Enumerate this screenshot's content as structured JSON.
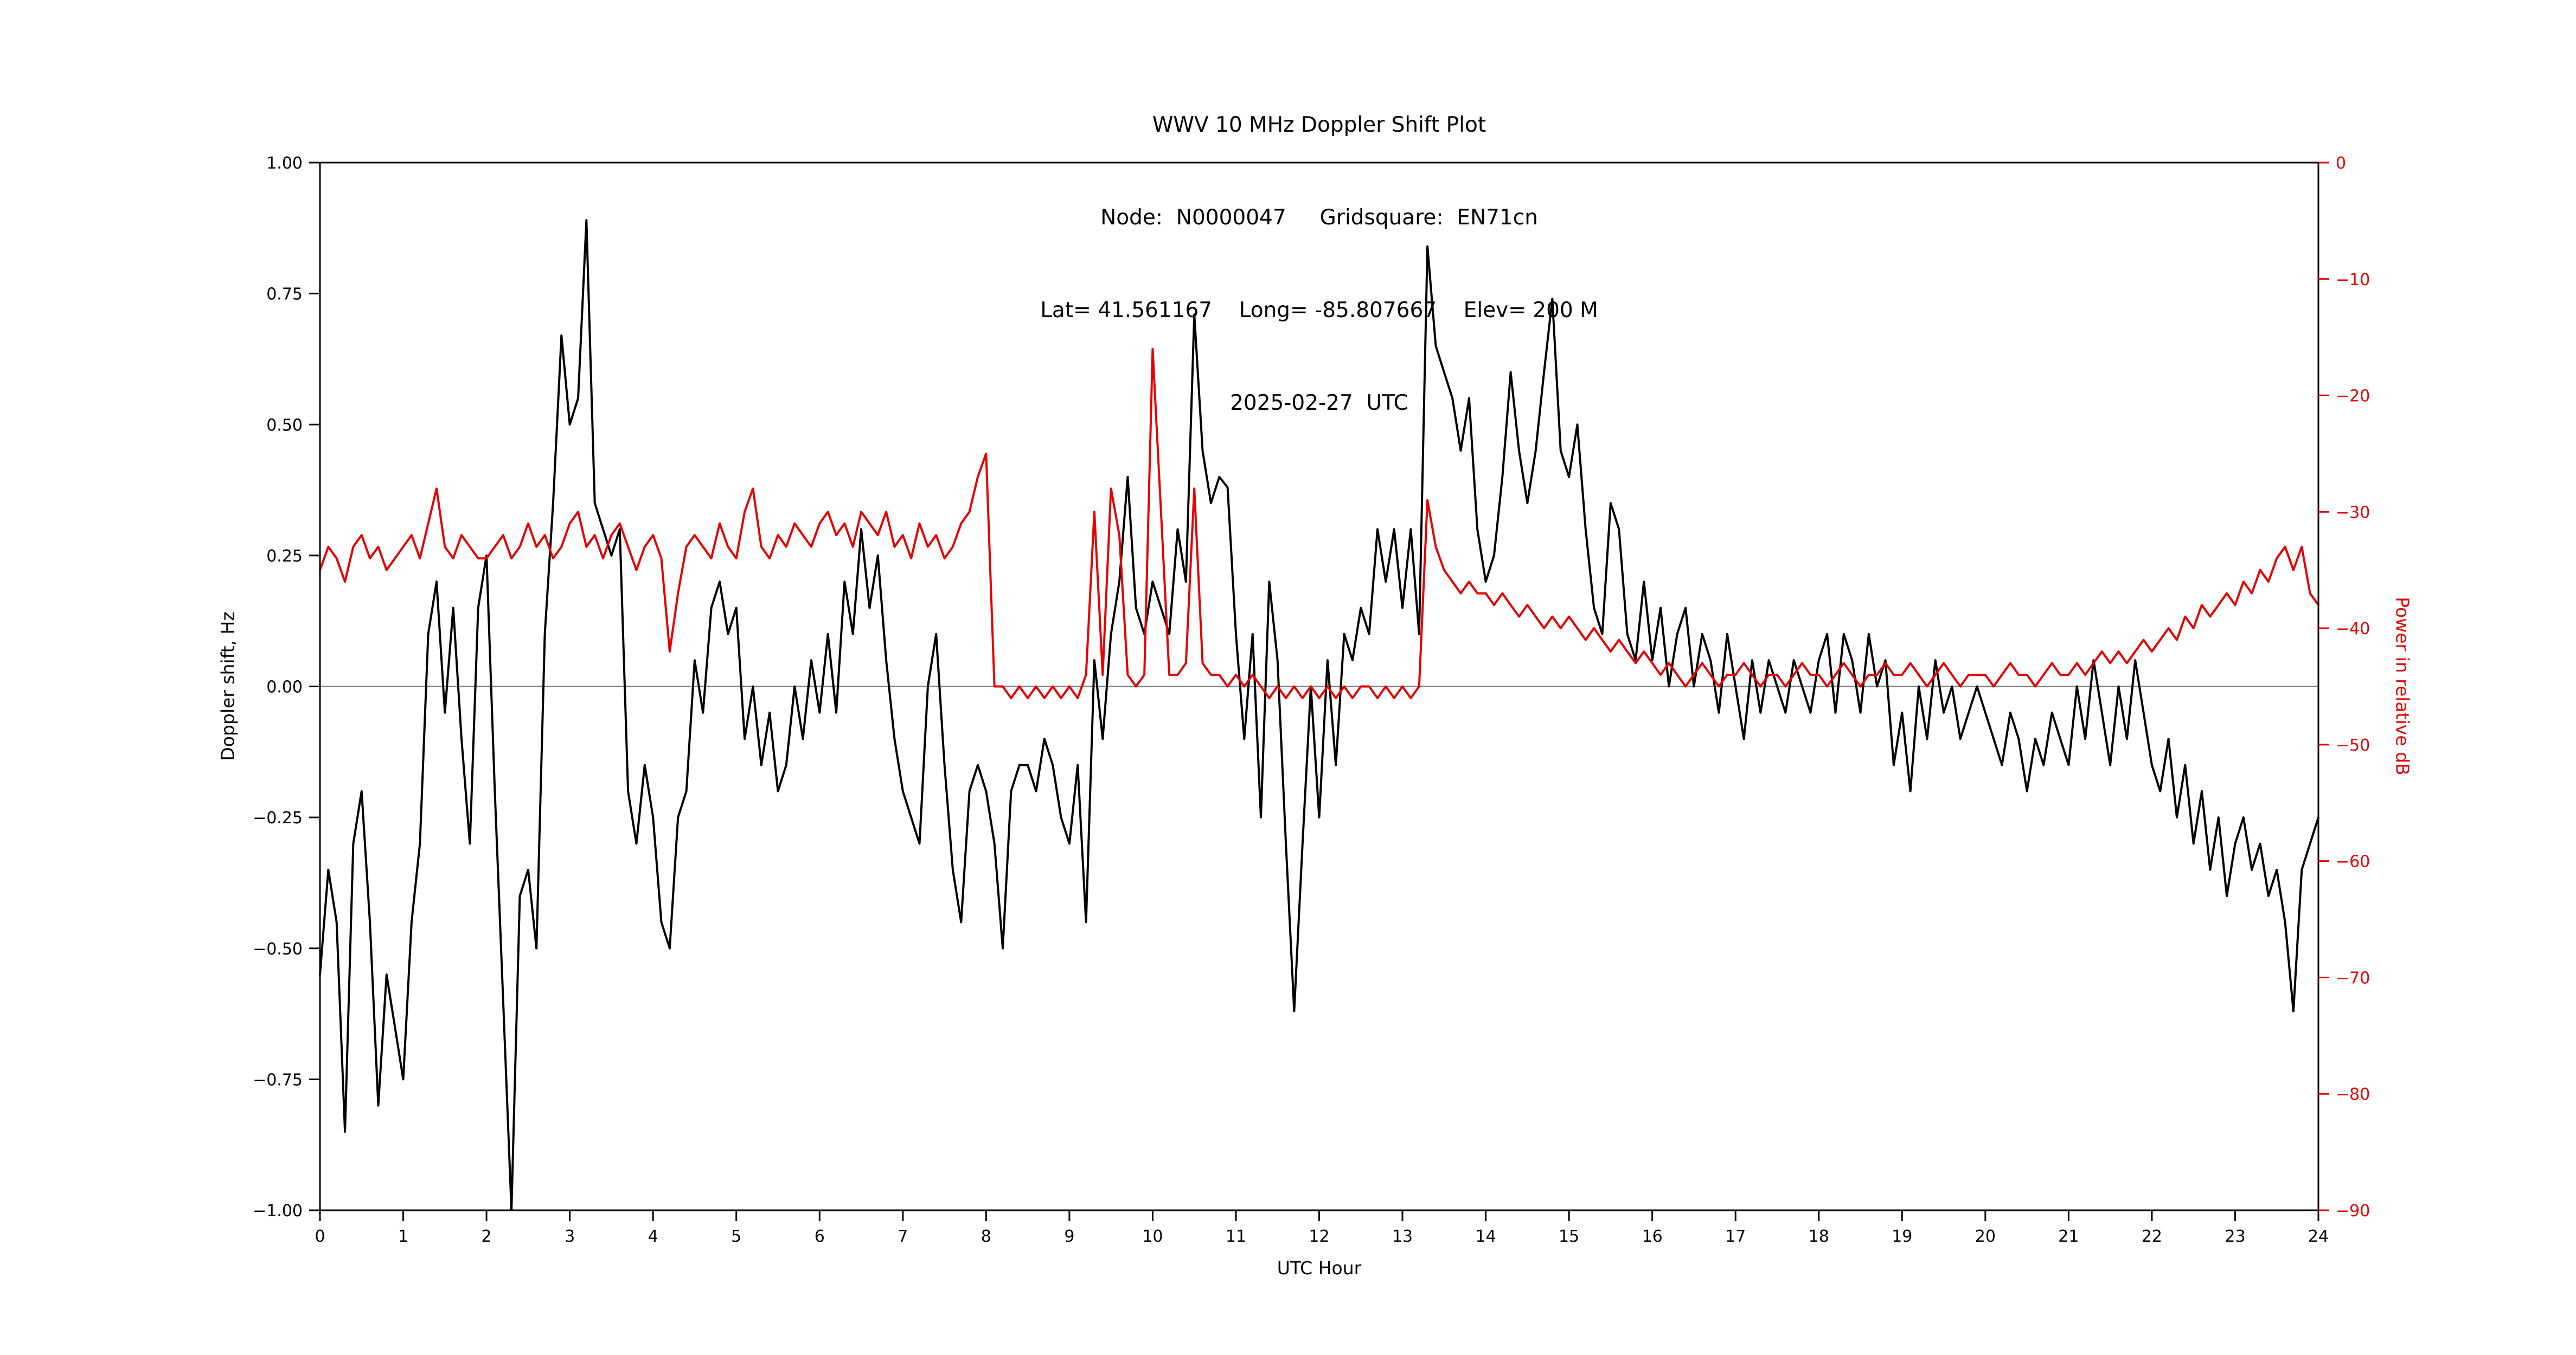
{
  "chart_data": {
    "type": "line",
    "title": "WWV 10 MHz Doppler Shift Plot",
    "title_lines": [
      "WWV 10 MHz Doppler Shift Plot",
      "Node:  N0000047     Gridsquare:  EN71cn",
      "Lat= 41.561167    Long= -85.807667    Elev= 200 M",
      "2025-02-27  UTC"
    ],
    "xlabel": "UTC Hour",
    "ylabel_left": "Doppler shift, Hz",
    "ylabel_right": "Power in relative dB",
    "x_range": [
      0,
      24
    ],
    "y_left_range": [
      -1.0,
      1.0
    ],
    "y_right_range": [
      -90,
      0
    ],
    "x_ticks": [
      0,
      1,
      2,
      3,
      4,
      5,
      6,
      7,
      8,
      9,
      10,
      11,
      12,
      13,
      14,
      15,
      16,
      17,
      18,
      19,
      20,
      21,
      22,
      23,
      24
    ],
    "x_tick_labels": [
      "0",
      "1",
      "2",
      "3",
      "4",
      "5",
      "6",
      "7",
      "8",
      "9",
      "10",
      "11",
      "12",
      "13",
      "14",
      "15",
      "16",
      "17",
      "18",
      "19",
      "20",
      "21",
      "22",
      "23",
      "24"
    ],
    "y_left_ticks": [
      -1.0,
      -0.75,
      -0.5,
      -0.25,
      0.0,
      0.25,
      0.5,
      0.75,
      1.0
    ],
    "y_left_tick_labels": [
      "−1.00",
      "−0.75",
      "−0.50",
      "−0.25",
      "0.00",
      "0.25",
      "0.50",
      "0.75",
      "1.00"
    ],
    "y_right_ticks": [
      0,
      -10,
      -20,
      -30,
      -40,
      -50,
      -60,
      -70,
      -80,
      -90
    ],
    "y_right_tick_labels": [
      "0",
      "−10",
      "−20",
      "−30",
      "−40",
      "−50",
      "−60",
      "−70",
      "−80",
      "−90"
    ],
    "grid": false,
    "legend": "none",
    "zero_line_value": 0.0,
    "colors": {
      "doppler": "#000000",
      "power": "#e60000",
      "zero_line": "#808080",
      "spine": "#000000"
    },
    "x_step": 0.1,
    "series": [
      {
        "name": "Doppler shift",
        "axis": "left",
        "color": "#000000",
        "values": [
          -0.55,
          -0.35,
          -0.45,
          -0.85,
          -0.3,
          -0.2,
          -0.45,
          -0.8,
          -0.55,
          -0.65,
          -0.75,
          -0.45,
          -0.3,
          0.1,
          0.2,
          -0.05,
          0.15,
          -0.1,
          -0.3,
          0.15,
          0.25,
          -0.2,
          -0.6,
          -1.0,
          -0.4,
          -0.35,
          -0.5,
          0.1,
          0.35,
          0.67,
          0.5,
          0.55,
          0.89,
          0.35,
          0.3,
          0.25,
          0.3,
          -0.2,
          -0.3,
          -0.15,
          -0.25,
          -0.45,
          -0.5,
          -0.25,
          -0.2,
          0.05,
          -0.05,
          0.15,
          0.2,
          0.1,
          0.15,
          -0.1,
          0.0,
          -0.15,
          -0.05,
          -0.2,
          -0.15,
          0.0,
          -0.1,
          0.05,
          -0.05,
          0.1,
          -0.05,
          0.2,
          0.1,
          0.3,
          0.15,
          0.25,
          0.05,
          -0.1,
          -0.2,
          -0.25,
          -0.3,
          0.0,
          0.1,
          -0.15,
          -0.35,
          -0.45,
          -0.2,
          -0.15,
          -0.2,
          -0.3,
          -0.5,
          -0.2,
          -0.15,
          -0.15,
          -0.2,
          -0.1,
          -0.15,
          -0.25,
          -0.3,
          -0.15,
          -0.45,
          0.05,
          -0.1,
          0.1,
          0.2,
          0.4,
          0.15,
          0.1,
          0.2,
          0.15,
          0.1,
          0.3,
          0.2,
          0.71,
          0.45,
          0.35,
          0.4,
          0.38,
          0.1,
          -0.1,
          0.1,
          -0.25,
          0.2,
          0.05,
          -0.3,
          -0.62,
          -0.3,
          0.0,
          -0.25,
          0.05,
          -0.15,
          0.1,
          0.05,
          0.15,
          0.1,
          0.3,
          0.2,
          0.3,
          0.15,
          0.3,
          0.1,
          0.84,
          0.65,
          0.6,
          0.55,
          0.45,
          0.55,
          0.3,
          0.2,
          0.25,
          0.4,
          0.6,
          0.45,
          0.35,
          0.45,
          0.6,
          0.74,
          0.45,
          0.4,
          0.5,
          0.3,
          0.15,
          0.1,
          0.35,
          0.3,
          0.1,
          0.05,
          0.2,
          0.05,
          0.15,
          0.0,
          0.1,
          0.15,
          0.0,
          0.1,
          0.05,
          -0.05,
          0.1,
          0.0,
          -0.1,
          0.05,
          -0.05,
          0.05,
          0.0,
          -0.05,
          0.05,
          0.0,
          -0.05,
          0.05,
          0.1,
          -0.05,
          0.1,
          0.05,
          -0.05,
          0.1,
          0.0,
          0.05,
          -0.15,
          -0.05,
          -0.2,
          0.0,
          -0.1,
          0.05,
          -0.05,
          0.0,
          -0.1,
          -0.05,
          0.0,
          -0.05,
          -0.1,
          -0.15,
          -0.05,
          -0.1,
          -0.2,
          -0.1,
          -0.15,
          -0.05,
          -0.1,
          -0.15,
          0.0,
          -0.1,
          0.05,
          -0.05,
          -0.15,
          0.0,
          -0.1,
          0.05,
          -0.05,
          -0.15,
          -0.2,
          -0.1,
          -0.25,
          -0.15,
          -0.3,
          -0.2,
          -0.35,
          -0.25,
          -0.4,
          -0.3,
          -0.25,
          -0.35,
          -0.3,
          -0.4,
          -0.35,
          -0.45,
          -0.62,
          -0.35,
          -0.3,
          -0.25
        ]
      },
      {
        "name": "Power in relative dB",
        "axis": "right",
        "color": "#e60000",
        "values": [
          -35,
          -33,
          -34,
          -36,
          -33,
          -32,
          -34,
          -33,
          -35,
          -34,
          -33,
          -32,
          -34,
          -31,
          -28,
          -33,
          -34,
          -32,
          -33,
          -34,
          -34,
          -33,
          -32,
          -34,
          -33,
          -31,
          -33,
          -32,
          -34,
          -33,
          -31,
          -30,
          -33,
          -32,
          -34,
          -32,
          -31,
          -33,
          -35,
          -33,
          -32,
          -34,
          -42,
          -37,
          -33,
          -32,
          -33,
          -34,
          -31,
          -33,
          -34,
          -30,
          -28,
          -33,
          -34,
          -32,
          -33,
          -31,
          -32,
          -33,
          -31,
          -30,
          -32,
          -31,
          -33,
          -30,
          -31,
          -32,
          -30,
          -33,
          -32,
          -34,
          -31,
          -33,
          -32,
          -34,
          -33,
          -31,
          -30,
          -27,
          -25,
          -45,
          -45,
          -46,
          -45,
          -46,
          -45,
          -46,
          -45,
          -46,
          -45,
          -46,
          -44,
          -30,
          -44,
          -28,
          -32,
          -44,
          -45,
          -44,
          -16,
          -30,
          -44,
          -44,
          -43,
          -28,
          -43,
          -44,
          -44,
          -45,
          -44,
          -45,
          -44,
          -45,
          -46,
          -45,
          -46,
          -45,
          -46,
          -45,
          -46,
          -45,
          -46,
          -45,
          -46,
          -45,
          -45,
          -46,
          -45,
          -46,
          -45,
          -46,
          -45,
          -29,
          -33,
          -35,
          -36,
          -37,
          -36,
          -37,
          -37,
          -38,
          -37,
          -38,
          -39,
          -38,
          -39,
          -40,
          -39,
          -40,
          -39,
          -40,
          -41,
          -40,
          -41,
          -42,
          -41,
          -42,
          -43,
          -42,
          -43,
          -44,
          -43,
          -44,
          -45,
          -44,
          -43,
          -44,
          -45,
          -44,
          -44,
          -43,
          -44,
          -45,
          -44,
          -44,
          -45,
          -44,
          -43,
          -44,
          -44,
          -45,
          -44,
          -43,
          -44,
          -45,
          -44,
          -44,
          -43,
          -44,
          -44,
          -43,
          -44,
          -45,
          -44,
          -43,
          -44,
          -45,
          -44,
          -44,
          -44,
          -45,
          -44,
          -43,
          -44,
          -44,
          -45,
          -44,
          -43,
          -44,
          -44,
          -43,
          -44,
          -43,
          -42,
          -43,
          -42,
          -43,
          -42,
          -41,
          -42,
          -41,
          -40,
          -41,
          -39,
          -40,
          -38,
          -39,
          -38,
          -37,
          -38,
          -36,
          -37,
          -35,
          -36,
          -34,
          -33,
          -35,
          -33,
          -37,
          -38
        ]
      }
    ]
  }
}
